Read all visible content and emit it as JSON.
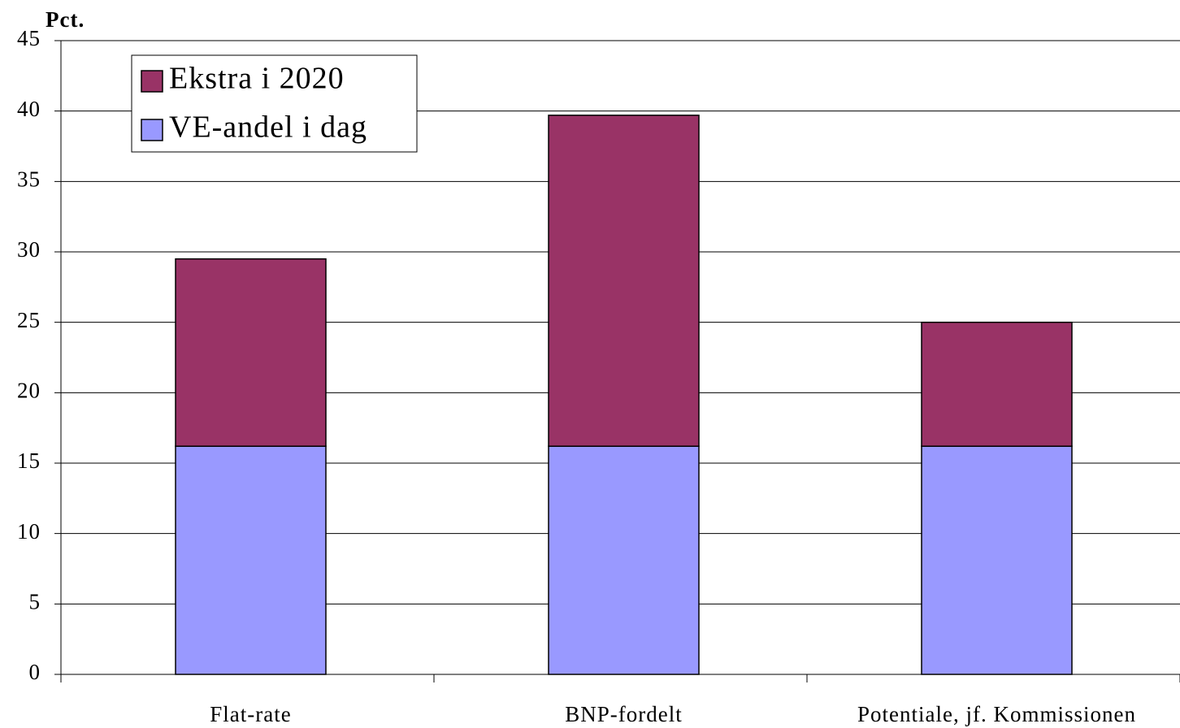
{
  "chart_data": {
    "type": "stacked_bar",
    "y_label": "Pct.",
    "categories": [
      "Flat-rate",
      "BNP-fordelt",
      "Potentiale, jf. Kommissionen"
    ],
    "series": [
      {
        "name": "VE-andel i dag",
        "color": "#9999ff",
        "values": [
          16.2,
          16.2,
          16.2
        ]
      },
      {
        "name": "Ekstra i 2020",
        "color": "#993366",
        "values": [
          13.3,
          23.5,
          8.8
        ]
      }
    ],
    "ylim": [
      0,
      45
    ],
    "yticks": [
      0,
      5,
      10,
      15,
      20,
      25,
      30,
      35,
      40,
      45
    ],
    "grid": true,
    "legend": "top-left"
  }
}
